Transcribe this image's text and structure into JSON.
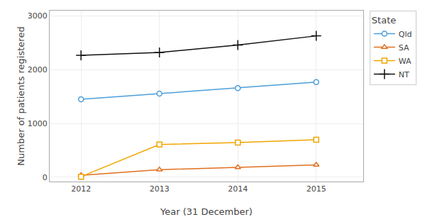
{
  "chart_data": {
    "type": "line",
    "x": [
      2012,
      2013,
      2014,
      2015
    ],
    "series": [
      {
        "name": "Qld",
        "color": "#4C9ED9",
        "marker": "circle",
        "line_style": "solid",
        "values": [
          1450,
          1555,
          1660,
          1770
        ]
      },
      {
        "name": "SA",
        "color": "#E07020",
        "marker": "triangle",
        "line_style": "solid",
        "values": [
          35,
          140,
          185,
          230
        ]
      },
      {
        "name": "WA",
        "color": "#F0A500",
        "marker": "square",
        "line_style": "solid",
        "values": [
          10,
          610,
          645,
          700
        ]
      },
      {
        "name": "NT",
        "color": "#111111",
        "marker": "plus",
        "line_style": "solid",
        "values": [
          2270,
          2320,
          2460,
          2630
        ]
      }
    ],
    "xlabel": "Year (31 December)",
    "ylabel": "Number of patients registered",
    "legend_title": "State",
    "xlim": [
      2011.6,
      2015.6
    ],
    "ylim": [
      -80,
      3100
    ],
    "xticks": [
      2012,
      2013,
      2014,
      2015
    ],
    "yticks": [
      0,
      1000,
      2000,
      3000
    ],
    "grid": true,
    "legend": "right"
  }
}
